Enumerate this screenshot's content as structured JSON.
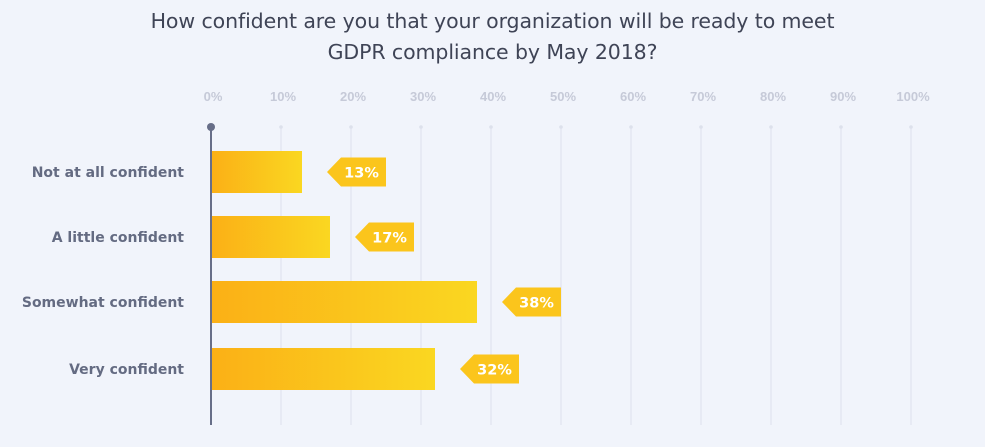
{
  "title_lines": [
    "How confident are you that your organization will be ready to meet",
    "GDPR compliance by May 2018?"
  ],
  "colors": {
    "bar_start": "#fbb016",
    "bar_end": "#fad721",
    "label_bg": "#fbc51c",
    "grid": "#dde1ec",
    "axis": "#676e88",
    "background": "#f1f4fb"
  },
  "chart_data": {
    "type": "bar",
    "orientation": "horizontal",
    "title": "How confident are you that your organization will be ready to meet GDPR compliance by May 2018?",
    "categories": [
      "Not at all confident",
      "A little confident",
      "Somewhat confident",
      "Very confident"
    ],
    "values": [
      13,
      17,
      38,
      32
    ],
    "value_labels": [
      "13%",
      "17%",
      "38%",
      "32%"
    ],
    "xlim": [
      0,
      100
    ],
    "xticks": [
      "0%",
      "10%",
      "20%",
      "30%",
      "40%",
      "50%",
      "60%",
      "70%",
      "80%",
      "90%",
      "100%"
    ],
    "grid": true,
    "legend": "none"
  }
}
